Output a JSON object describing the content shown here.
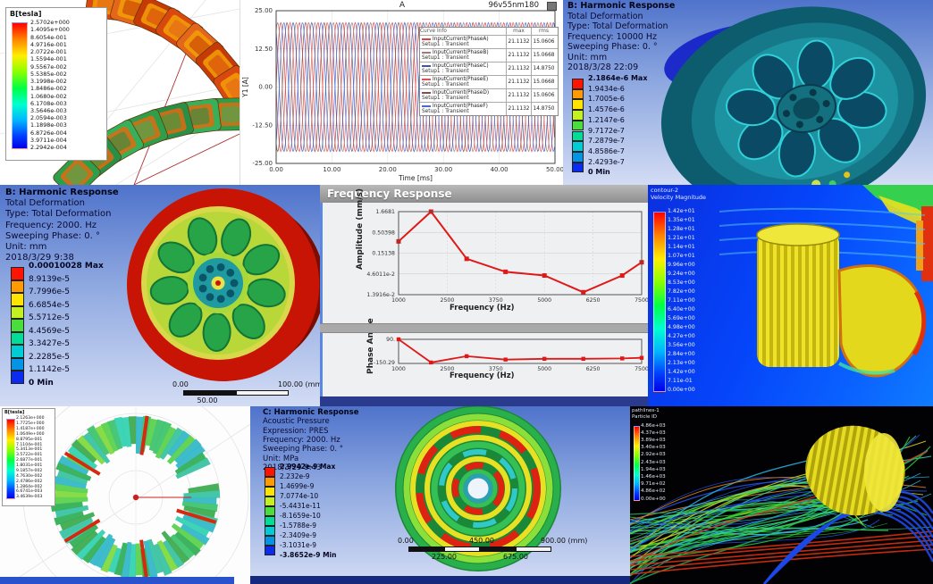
{
  "colors": {
    "ansys_bands": [
      "#fe1400",
      "#ff9b00",
      "#ffe400",
      "#c3f021",
      "#4ade3c",
      "#00dd98",
      "#00ccd6",
      "#0295e6",
      "#0b2cf0"
    ],
    "accent_red": "#e01818",
    "window_border_blue": "#5a86e8"
  },
  "panels": {
    "maxwell_top": {
      "legend_title": "B[tesla]",
      "legend_values": [
        "2.5702e+000",
        "1.4095e+000",
        "8.6054e-001",
        "4.9716e-001",
        "2.0722e-001",
        "1.5594e-001",
        "9.5567e-002",
        "5.5385e-002",
        "3.1998e-002",
        "1.8486e-002",
        "1.0680e-002",
        "6.1708e-003",
        "3.5646e-003",
        "2.0594e-003",
        "1.1898e-003",
        "6.8726e-004",
        "3.9711e-004",
        "2.2942e-004"
      ]
    },
    "current_plot": {
      "header_title": "A",
      "header_right": "96v55nm180",
      "ylabel": "Y1 [A]",
      "xlabel": "Time [ms]",
      "yticks": [
        "25.00",
        "12.50",
        "0.00",
        "-12.50",
        "-25.00"
      ],
      "xticks": [
        "0.00",
        "10.00",
        "20.00",
        "30.00",
        "40.00",
        "50.00"
      ],
      "table_headers": [
        "Curve Info",
        "max",
        "rms"
      ]
    },
    "harmonic_b1": {
      "title": "B: Harmonic Response",
      "lines": [
        "Total Deformation",
        "Type: Total Deformation",
        "Frequency: 10000 Hz",
        "Sweeping Phase: 0. °",
        "Unit: mm",
        "2018/3/28 22:09"
      ],
      "legend": [
        "2.1864e-6 Max",
        "1.9434e-6",
        "1.7005e-6",
        "1.4576e-6",
        "1.2147e-6",
        "9.7172e-7",
        "7.2879e-7",
        "4.8586e-7",
        "2.4293e-7",
        "0 Min"
      ]
    },
    "harmonic_b2": {
      "title": "B: Harmonic Response",
      "lines": [
        "Total Deformation",
        "Type: Total Deformation",
        "Frequency: 2000. Hz",
        "Sweeping Phase: 0. °",
        "Unit: mm",
        "2018/3/29 9:38"
      ],
      "legend": [
        "0.00010028 Max",
        "8.9139e-5",
        "7.7996e-5",
        "6.6854e-5",
        "5.5712e-5",
        "4.4569e-5",
        "3.3427e-5",
        "2.2285e-5",
        "1.1142e-5",
        "0 Min"
      ],
      "ruler": {
        "start": "0.00",
        "end": "100.00 (mm)",
        "mid": "50.00"
      }
    },
    "freq_response": {
      "window_title": "Frequency Response",
      "amp": {
        "ylabel": "Amplitude (mm/s)",
        "xlabel": "Frequency (Hz)",
        "yticks": [
          "1.6681",
          "0.50398",
          "0.15138",
          "4.6011e-2",
          "1.3916e-2"
        ],
        "xticks": [
          "1000",
          "2500",
          "3750",
          "5000",
          "6250",
          "7500"
        ]
      },
      "phase": {
        "ylabel": "Phase Angle",
        "xlabel": "Frequency (Hz)",
        "yticks": [
          "90.",
          "-150.29"
        ],
        "xticks": [
          "1000",
          "2500",
          "3750",
          "5000",
          "6250",
          "7500"
        ]
      }
    },
    "cfd_contour": {
      "title_line1": "contour-2",
      "title_line2": "Velocity Magnitude",
      "values": [
        "1.42e+01",
        "1.35e+01",
        "1.28e+01",
        "1.21e+01",
        "1.14e+01",
        "1.07e+01",
        "9.96e+00",
        "9.24e+00",
        "8.53e+00",
        "7.82e+00",
        "7.11e+00",
        "6.40e+00",
        "5.69e+00",
        "4.98e+00",
        "4.27e+00",
        "3.56e+00",
        "2.84e+00",
        "2.13e+00",
        "1.42e+00",
        "7.11e-01",
        "0.00e+00"
      ]
    },
    "maxwell_bottom": {
      "legend_title": "B[tesla]",
      "legend_values": [
        "2.1263e+000",
        "1.7725e+000",
        "1.4187e+000",
        "1.0649e+000",
        "8.8795e-001",
        "7.1104e-001",
        "5.3413e-001",
        "3.5722e-001",
        "2.6877e-001",
        "1.8031e-001",
        "9.1857e-002",
        "4.7630e-002",
        "2.4786e-002",
        "1.2864e-002",
        "6.6741e-003",
        "3.4639e-003"
      ]
    },
    "harmonic_c": {
      "title": "C: Harmonic Response",
      "lines": [
        "Acoustic Pressure",
        "Expression: PRES",
        "Frequency: 2000. Hz",
        "Sweeping Phase: 0. °",
        "Unit: MPa",
        "2018/3/29 9:43"
      ],
      "legend": [
        "2.9942e-9 Max",
        "2.232e-9",
        "1.4699e-9",
        "7.0774e-10",
        "-5.4431e-11",
        "-8.1659e-10",
        "-1.5788e-9",
        "-2.3409e-9",
        "-3.1031e-9",
        "-3.8652e-9 Min"
      ],
      "ruler": {
        "labels_top": [
          "0.00",
          "450.00",
          "900.00 (mm)"
        ],
        "labels_bottom": [
          "225.00",
          "675.00"
        ]
      }
    },
    "pathlines": {
      "title_line1": "pathlines-1",
      "title_line2": "Particle ID",
      "values": [
        "4.86e+03",
        "4.37e+03",
        "3.89e+03",
        "3.40e+03",
        "2.92e+03",
        "2.43e+03",
        "1.94e+03",
        "1.46e+03",
        "9.71e+02",
        "4.86e+02",
        "0.00e+00"
      ]
    }
  },
  "chart_data": [
    {
      "type": "line",
      "title": "A",
      "subtitle": "96v55nm180",
      "xlabel": "Time [ms]",
      "ylabel": "Y1 [A]",
      "xlim": [
        0,
        50
      ],
      "ylim": [
        -25,
        25
      ],
      "waveform": {
        "amplitude": 21.1132,
        "period_ms": 3.3333
      },
      "series": [
        {
          "name": "InputCurrent(PhaseA)",
          "setup": "Setup1 : Transient",
          "max": "21.1132",
          "rms": "15.0606",
          "color": "#d84444",
          "phase_deg": 0
        },
        {
          "name": "InputCurrent(PhaseB)",
          "setup": "Setup1 : Transient",
          "max": "21.1132",
          "rms": "15.0668",
          "color": "#a87878",
          "phase_deg": 60
        },
        {
          "name": "InputCurrent(PhaseC)",
          "setup": "Setup1 : Transient",
          "max": "21.1132",
          "rms": "14.8750",
          "color": "#3a55b0",
          "phase_deg": 120
        },
        {
          "name": "InputCurrent(PhaseE)",
          "setup": "Setup1 : Transient",
          "max": "21.1132",
          "rms": "15.0668",
          "color": "#e05050",
          "phase_deg": 180
        },
        {
          "name": "InputCurrent(PhaseD)",
          "setup": "Setup1 : Transient",
          "max": "21.1132",
          "rms": "15.0606",
          "color": "#8a4a4a",
          "phase_deg": 240
        },
        {
          "name": "InputCurrent(PhaseF)",
          "setup": "Setup1 : Transient",
          "max": "21.1132",
          "rms": "14.8750",
          "color": "#4868d8",
          "phase_deg": 300
        }
      ]
    },
    {
      "type": "line",
      "title": "Frequency Response - Amplitude",
      "xlabel": "Frequency (Hz)",
      "ylabel": "Amplitude (mm/s)",
      "yscale": "log",
      "x": [
        1000,
        2000,
        3000,
        4000,
        5000,
        6000,
        7000,
        7500
      ],
      "y": [
        0.3,
        1.6681,
        0.11,
        0.052,
        0.042,
        0.016,
        0.042,
        0.09
      ],
      "xticks": [
        1000,
        2500,
        3750,
        5000,
        6250,
        7500
      ],
      "ylim": [
        0.013916,
        1.6681
      ],
      "marker": "square",
      "color": "#e01818"
    },
    {
      "type": "line",
      "title": "Frequency Response - Phase Angle",
      "xlabel": "Frequency (Hz)",
      "ylabel": "Phase Angle",
      "x": [
        1000,
        2000,
        3000,
        4000,
        5000,
        6000,
        7000,
        7500
      ],
      "y": [
        90,
        -150,
        -85,
        -120,
        -112,
        -112,
        -108,
        -102
      ],
      "xticks": [
        1000,
        2500,
        3750,
        5000,
        6250,
        7500
      ],
      "ylim": [
        -160,
        90
      ],
      "marker": "square",
      "color": "#e01818"
    }
  ]
}
